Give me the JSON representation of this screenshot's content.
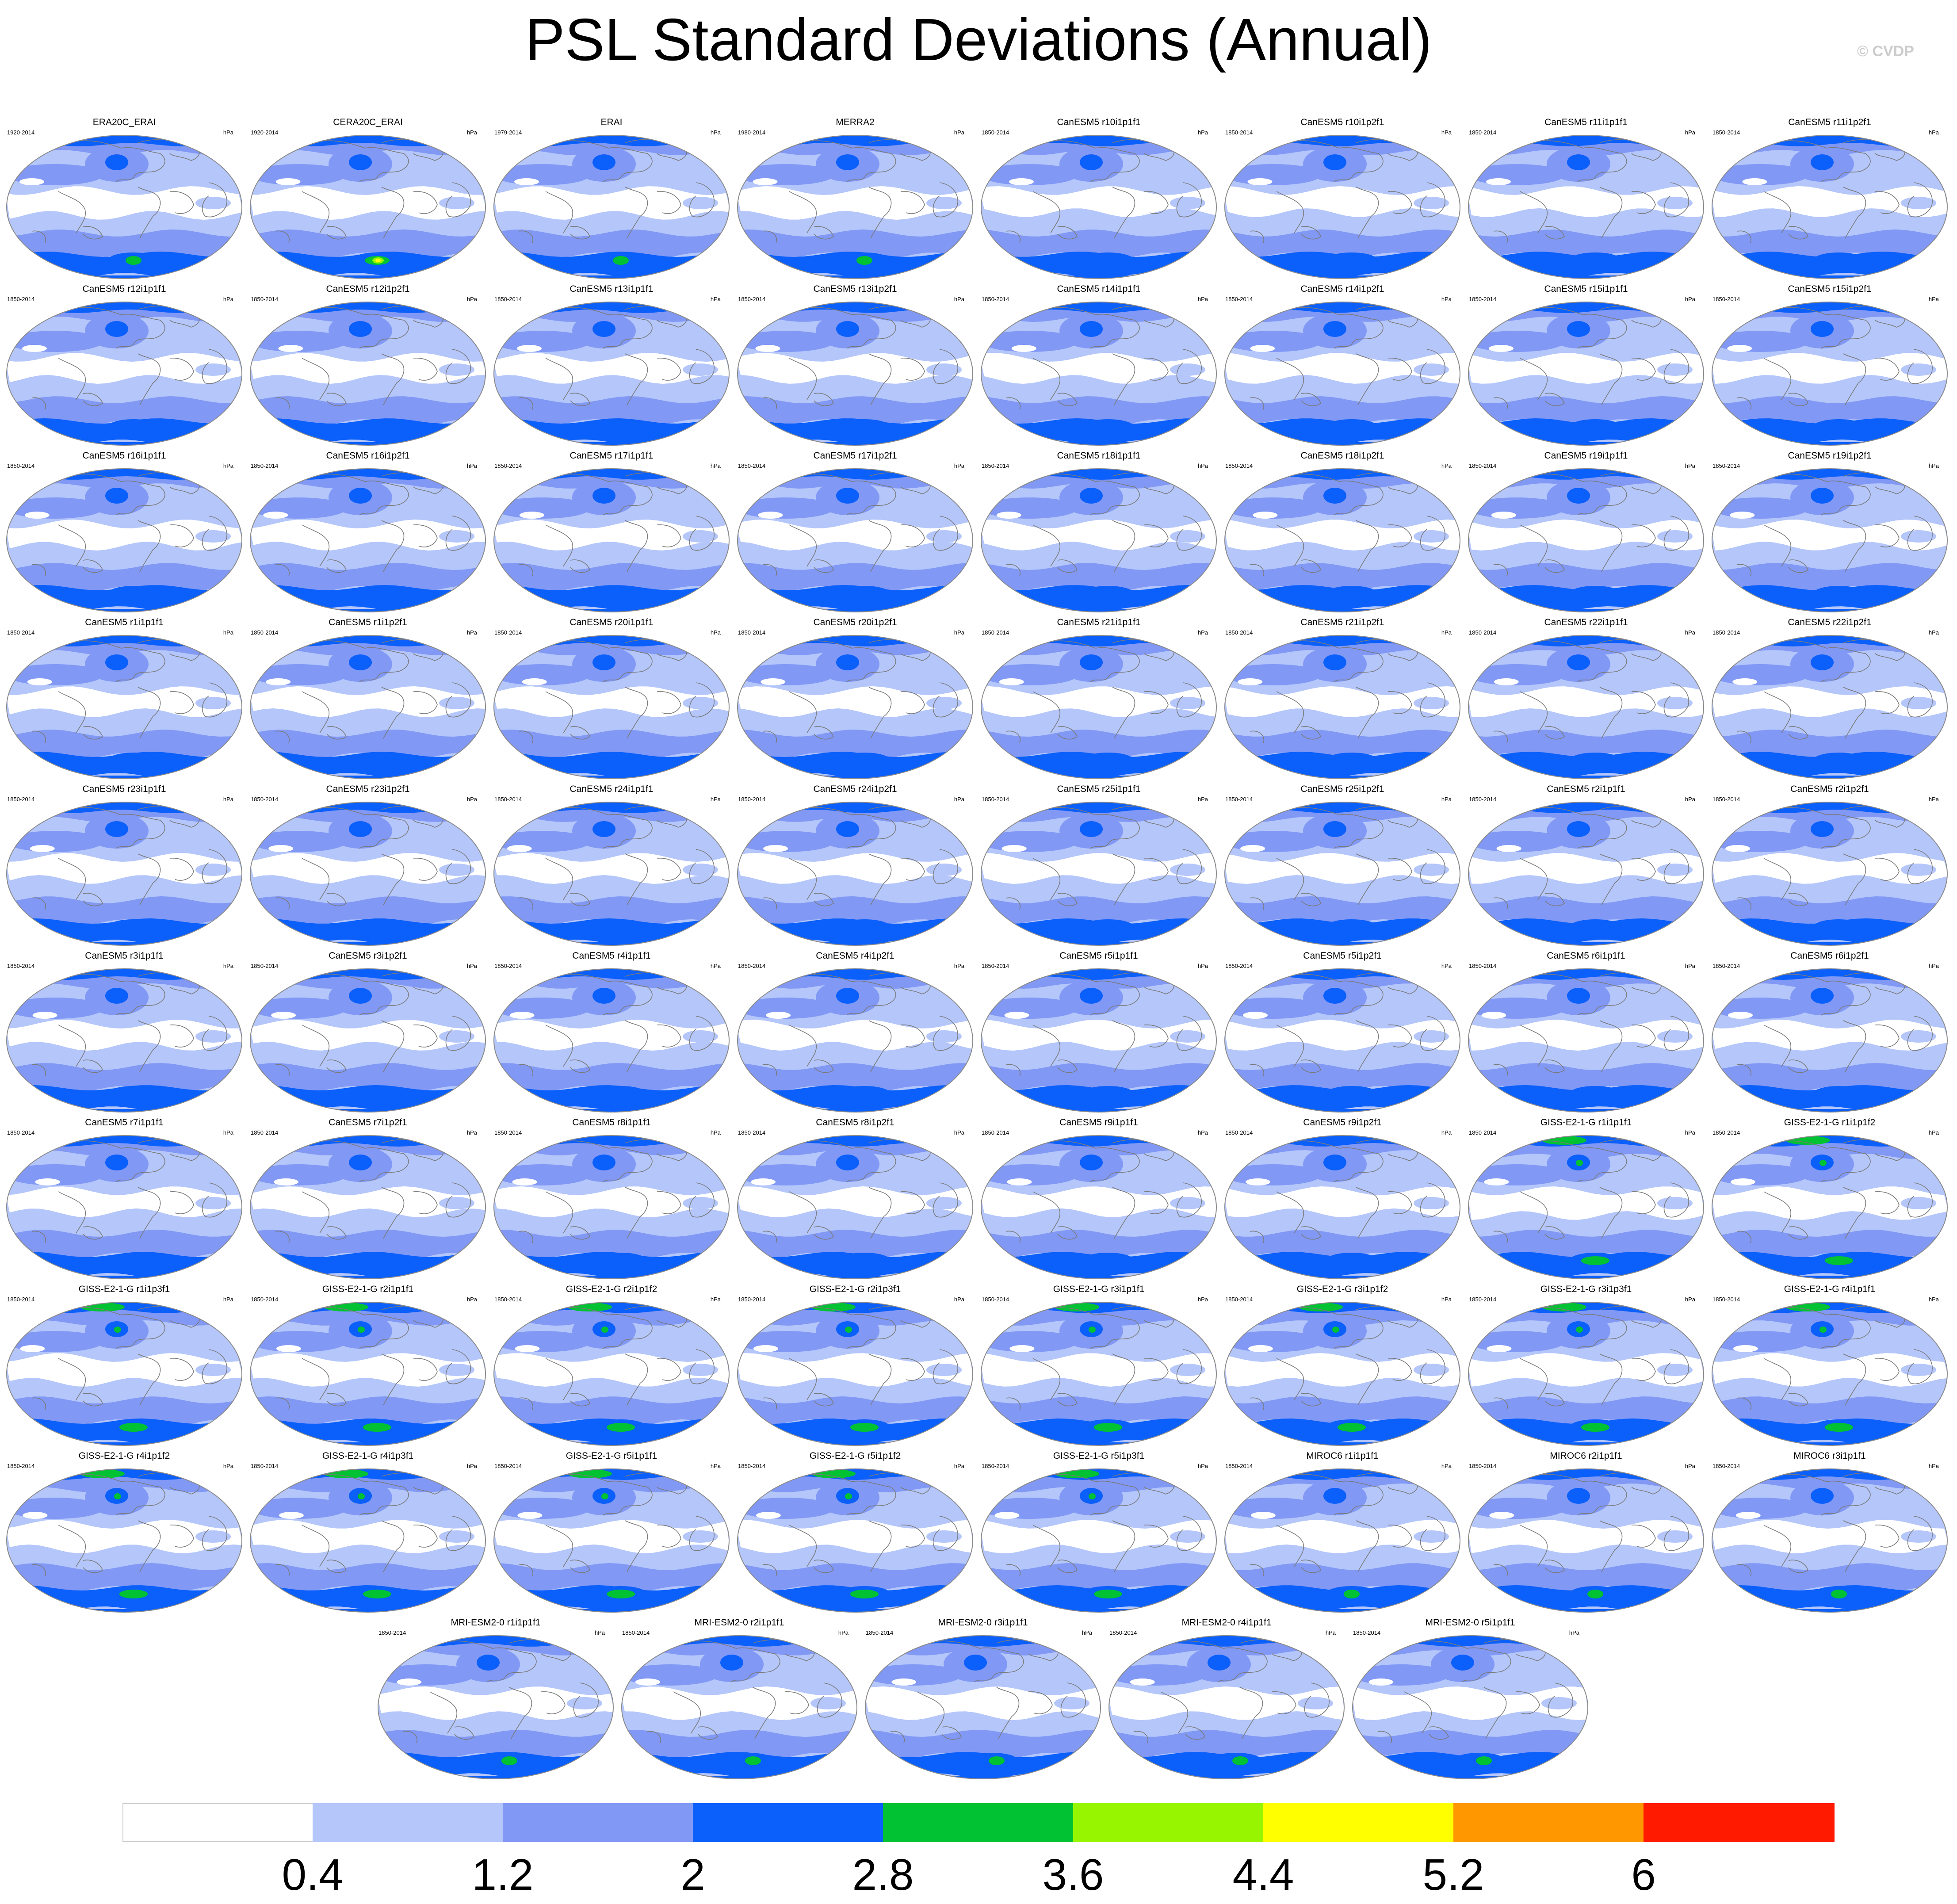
{
  "title": "PSL Standard Deviations (Annual)",
  "copyright": "© CVDP",
  "units": "hPa",
  "panels": [
    {
      "name": "ERA20C_ERAI",
      "period": "1920-2014",
      "type": "obs1"
    },
    {
      "name": "CERA20C_ERAI",
      "period": "1920-2014",
      "type": "obs2"
    },
    {
      "name": "ERAI",
      "period": "1979-2014",
      "type": "obs3"
    },
    {
      "name": "MERRA2",
      "period": "1980-2014",
      "type": "obs3"
    },
    {
      "name": "CanESM5 r10i1p1f1",
      "period": "1850-2014",
      "type": "can"
    },
    {
      "name": "CanESM5 r10i1p2f1",
      "period": "1850-2014",
      "type": "can"
    },
    {
      "name": "CanESM5 r11i1p1f1",
      "period": "1850-2014",
      "type": "can"
    },
    {
      "name": "CanESM5 r11i1p2f1",
      "period": "1850-2014",
      "type": "can"
    },
    {
      "name": "CanESM5 r12i1p1f1",
      "period": "1850-2014",
      "type": "can"
    },
    {
      "name": "CanESM5 r12i1p2f1",
      "period": "1850-2014",
      "type": "can"
    },
    {
      "name": "CanESM5 r13i1p1f1",
      "period": "1850-2014",
      "type": "can"
    },
    {
      "name": "CanESM5 r13i1p2f1",
      "period": "1850-2014",
      "type": "can"
    },
    {
      "name": "CanESM5 r14i1p1f1",
      "period": "1850-2014",
      "type": "can"
    },
    {
      "name": "CanESM5 r14i1p2f1",
      "period": "1850-2014",
      "type": "can"
    },
    {
      "name": "CanESM5 r15i1p1f1",
      "period": "1850-2014",
      "type": "can"
    },
    {
      "name": "CanESM5 r15i1p2f1",
      "period": "1850-2014",
      "type": "can"
    },
    {
      "name": "CanESM5 r16i1p1f1",
      "period": "1850-2014",
      "type": "can"
    },
    {
      "name": "CanESM5 r16i1p2f1",
      "period": "1850-2014",
      "type": "can"
    },
    {
      "name": "CanESM5 r17i1p1f1",
      "period": "1850-2014",
      "type": "can"
    },
    {
      "name": "CanESM5 r17i1p2f1",
      "period": "1850-2014",
      "type": "can"
    },
    {
      "name": "CanESM5 r18i1p1f1",
      "period": "1850-2014",
      "type": "can"
    },
    {
      "name": "CanESM5 r18i1p2f1",
      "period": "1850-2014",
      "type": "can"
    },
    {
      "name": "CanESM5 r19i1p1f1",
      "period": "1850-2014",
      "type": "can"
    },
    {
      "name": "CanESM5 r19i1p2f1",
      "period": "1850-2014",
      "type": "can"
    },
    {
      "name": "CanESM5 r1i1p1f1",
      "period": "1850-2014",
      "type": "can"
    },
    {
      "name": "CanESM5 r1i1p2f1",
      "period": "1850-2014",
      "type": "can"
    },
    {
      "name": "CanESM5 r20i1p1f1",
      "period": "1850-2014",
      "type": "can"
    },
    {
      "name": "CanESM5 r20i1p2f1",
      "period": "1850-2014",
      "type": "can"
    },
    {
      "name": "CanESM5 r21i1p1f1",
      "period": "1850-2014",
      "type": "can"
    },
    {
      "name": "CanESM5 r21i1p2f1",
      "period": "1850-2014",
      "type": "can"
    },
    {
      "name": "CanESM5 r22i1p1f1",
      "period": "1850-2014",
      "type": "can"
    },
    {
      "name": "CanESM5 r22i1p2f1",
      "period": "1850-2014",
      "type": "can"
    },
    {
      "name": "CanESM5 r23i1p1f1",
      "period": "1850-2014",
      "type": "can"
    },
    {
      "name": "CanESM5 r23i1p2f1",
      "period": "1850-2014",
      "type": "can"
    },
    {
      "name": "CanESM5 r24i1p1f1",
      "period": "1850-2014",
      "type": "can"
    },
    {
      "name": "CanESM5 r24i1p2f1",
      "period": "1850-2014",
      "type": "can"
    },
    {
      "name": "CanESM5 r25i1p1f1",
      "period": "1850-2014",
      "type": "can"
    },
    {
      "name": "CanESM5 r25i1p2f1",
      "period": "1850-2014",
      "type": "can"
    },
    {
      "name": "CanESM5 r2i1p1f1",
      "period": "1850-2014",
      "type": "can"
    },
    {
      "name": "CanESM5 r2i1p2f1",
      "period": "1850-2014",
      "type": "can"
    },
    {
      "name": "CanESM5 r3i1p1f1",
      "period": "1850-2014",
      "type": "can"
    },
    {
      "name": "CanESM5 r3i1p2f1",
      "period": "1850-2014",
      "type": "can"
    },
    {
      "name": "CanESM5 r4i1p1f1",
      "period": "1850-2014",
      "type": "can"
    },
    {
      "name": "CanESM5 r4i1p2f1",
      "period": "1850-2014",
      "type": "can"
    },
    {
      "name": "CanESM5 r5i1p1f1",
      "period": "1850-2014",
      "type": "can"
    },
    {
      "name": "CanESM5 r5i1p2f1",
      "period": "1850-2014",
      "type": "can"
    },
    {
      "name": "CanESM5 r6i1p1f1",
      "period": "1850-2014",
      "type": "can"
    },
    {
      "name": "CanESM5 r6i1p2f1",
      "period": "1850-2014",
      "type": "can"
    },
    {
      "name": "CanESM5 r7i1p1f1",
      "period": "1850-2014",
      "type": "can"
    },
    {
      "name": "CanESM5 r7i1p2f1",
      "period": "1850-2014",
      "type": "can"
    },
    {
      "name": "CanESM5 r8i1p1f1",
      "period": "1850-2014",
      "type": "can"
    },
    {
      "name": "CanESM5 r8i1p2f1",
      "period": "1850-2014",
      "type": "can"
    },
    {
      "name": "CanESM5 r9i1p1f1",
      "period": "1850-2014",
      "type": "can"
    },
    {
      "name": "CanESM5 r9i1p2f1",
      "period": "1850-2014",
      "type": "can"
    },
    {
      "name": "GISS-E2-1-G r1i1p1f1",
      "period": "1850-2014",
      "type": "giss"
    },
    {
      "name": "GISS-E2-1-G r1i1p1f2",
      "period": "1850-2014",
      "type": "giss"
    },
    {
      "name": "GISS-E2-1-G r1i1p3f1",
      "period": "1850-2014",
      "type": "giss"
    },
    {
      "name": "GISS-E2-1-G r2i1p1f1",
      "period": "1850-2014",
      "type": "giss"
    },
    {
      "name": "GISS-E2-1-G r2i1p1f2",
      "period": "1850-2014",
      "type": "giss"
    },
    {
      "name": "GISS-E2-1-G r2i1p3f1",
      "period": "1850-2014",
      "type": "giss"
    },
    {
      "name": "GISS-E2-1-G r3i1p1f1",
      "period": "1850-2014",
      "type": "giss"
    },
    {
      "name": "GISS-E2-1-G r3i1p1f2",
      "period": "1850-2014",
      "type": "giss"
    },
    {
      "name": "GISS-E2-1-G r3i1p3f1",
      "period": "1850-2014",
      "type": "giss"
    },
    {
      "name": "GISS-E2-1-G r4i1p1f1",
      "period": "1850-2014",
      "type": "giss"
    },
    {
      "name": "GISS-E2-1-G r4i1p1f2",
      "period": "1850-2014",
      "type": "giss"
    },
    {
      "name": "GISS-E2-1-G r4i1p3f1",
      "period": "1850-2014",
      "type": "giss"
    },
    {
      "name": "GISS-E2-1-G r5i1p1f1",
      "period": "1850-2014",
      "type": "giss"
    },
    {
      "name": "GISS-E2-1-G r5i1p1f2",
      "period": "1850-2014",
      "type": "giss"
    },
    {
      "name": "GISS-E2-1-G r5i1p3f1",
      "period": "1850-2014",
      "type": "giss"
    },
    {
      "name": "MIROC6 r1i1p1f1",
      "period": "1850-2014",
      "type": "miroc"
    },
    {
      "name": "MIROC6 r2i1p1f1",
      "period": "1850-2014",
      "type": "miroc"
    },
    {
      "name": "MIROC6 r3i1p1f1",
      "period": "1850-2014",
      "type": "miroc"
    },
    {
      "name": "MRI-ESM2-0 r1i1p1f1",
      "period": "1850-2014",
      "type": "mri"
    },
    {
      "name": "MRI-ESM2-0 r2i1p1f1",
      "period": "1850-2014",
      "type": "mri"
    },
    {
      "name": "MRI-ESM2-0 r3i1p1f1",
      "period": "1850-2014",
      "type": "mri"
    },
    {
      "name": "MRI-ESM2-0 r4i1p1f1",
      "period": "1850-2014",
      "type": "mri"
    },
    {
      "name": "MRI-ESM2-0 r5i1p1f1",
      "period": "1850-2014",
      "type": "mri"
    }
  ],
  "colorbar": {
    "labels": [
      "0.4",
      "1.2",
      "2",
      "2.8",
      "3.6",
      "4.4",
      "5.2",
      "6"
    ],
    "colors": [
      "#ffffff",
      "#b4c6fa",
      "#8198f5",
      "#0b5ffa",
      "#00c232",
      "#98f500",
      "#ffff00",
      "#ff9800",
      "#ff1a00"
    ]
  },
  "map_colors": {
    "light": "#b4c6fa",
    "medium": "#8198f5",
    "dark": "#0b5ffa",
    "green": "#00c232",
    "lime": "#98f500",
    "yellow": "#ffff00",
    "coast": "#7a7a7a"
  }
}
